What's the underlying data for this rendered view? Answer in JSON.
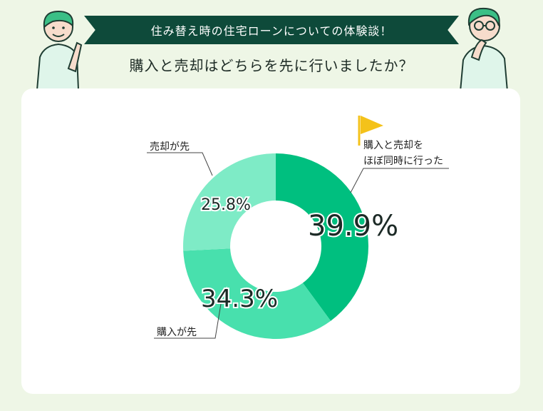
{
  "header": {
    "banner_text": "住み替え時の住宅ローンについての体験談！",
    "question": "購入と売却はどちらを先に行いましたか？"
  },
  "icons": {
    "left": "woman-pointing-icon",
    "right": "man-thinking-icon",
    "flag": "flag-icon"
  },
  "colors": {
    "background": "#eef6e6",
    "banner": "#0e4a3a",
    "slice_simultaneous": "#00bf7f",
    "slice_purchase_first": "#48e0ad",
    "slice_sale_first": "#7eebc6",
    "flag": "#f4c21a"
  },
  "chart_data": {
    "type": "pie",
    "donut": true,
    "title": "",
    "categories": [
      "購入と売却をほぼ同時に行った",
      "購入が先",
      "売却が先"
    ],
    "values": [
      39.9,
      34.3,
      25.8
    ],
    "unit": "%",
    "labels": [
      {
        "lines": [
          "購入と売却を",
          "ほぼ同時に行った"
        ],
        "percent": "39.9%"
      },
      {
        "lines": [
          "購入が先"
        ],
        "percent": "34.3%"
      },
      {
        "lines": [
          "売却が先"
        ],
        "percent": "25.8%"
      }
    ]
  }
}
